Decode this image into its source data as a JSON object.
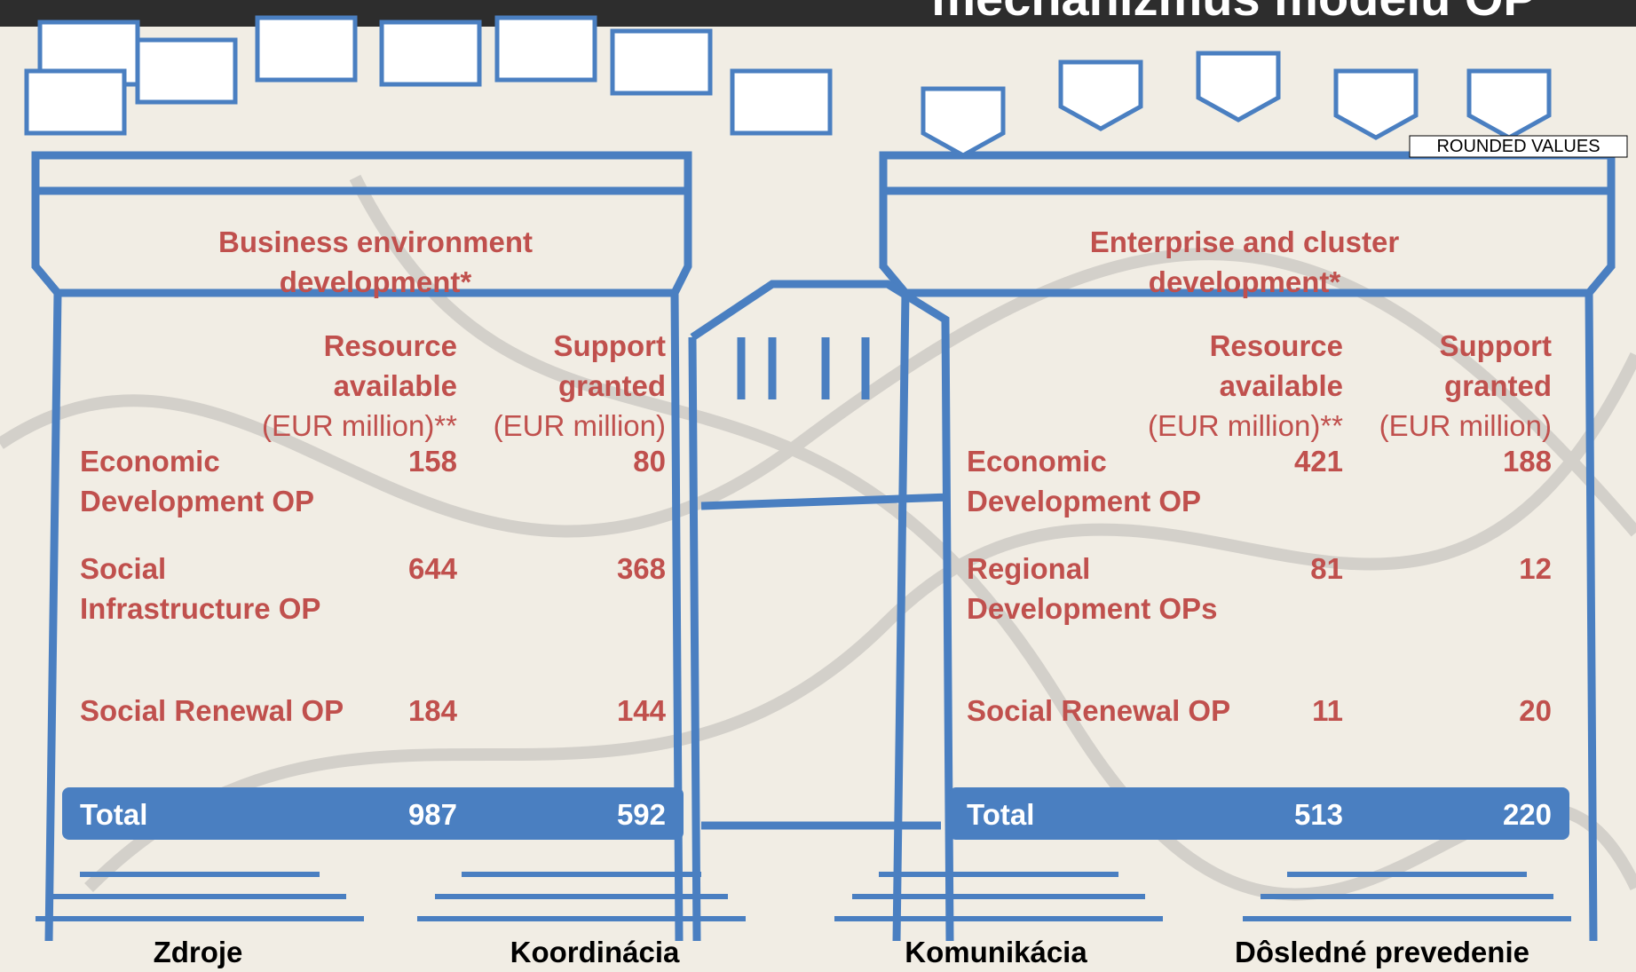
{
  "header": {
    "title": "mechanizmus modelu OP"
  },
  "note": "ROUNDED VALUES",
  "panels": [
    {
      "title": "Business environment development*",
      "columns": [
        {
          "label": "Resource available",
          "unit": "(EUR million)**"
        },
        {
          "label": "Support granted",
          "unit": "(EUR million)"
        }
      ],
      "rows": [
        {
          "label": "Economic Development OP",
          "values": [
            "158",
            "80"
          ]
        },
        {
          "label": "Social Infrastructure OP",
          "values": [
            "644",
            "368"
          ]
        },
        {
          "label": "Social Renewal OP",
          "values": [
            "184",
            "144"
          ]
        }
      ],
      "total": {
        "label": "Total",
        "values": [
          "987",
          "592"
        ]
      }
    },
    {
      "title": "Enterprise and cluster development*",
      "columns": [
        {
          "label": "Resource available",
          "unit": "(EUR million)**"
        },
        {
          "label": "Support granted",
          "unit": "(EUR million)"
        }
      ],
      "rows": [
        {
          "label": "Economic Development OP",
          "values": [
            "421",
            "188"
          ]
        },
        {
          "label": "Regional Development OPs",
          "values": [
            "81",
            "12"
          ]
        },
        {
          "label": "Social Renewal OP",
          "values": [
            "11",
            "20"
          ]
        }
      ],
      "total": {
        "label": "Total",
        "values": [
          "513",
          "220"
        ]
      }
    }
  ],
  "footer": [
    "Zdroje",
    "Koordinácia",
    "Komunikácia",
    "Dôsledné prevedenie"
  ]
}
